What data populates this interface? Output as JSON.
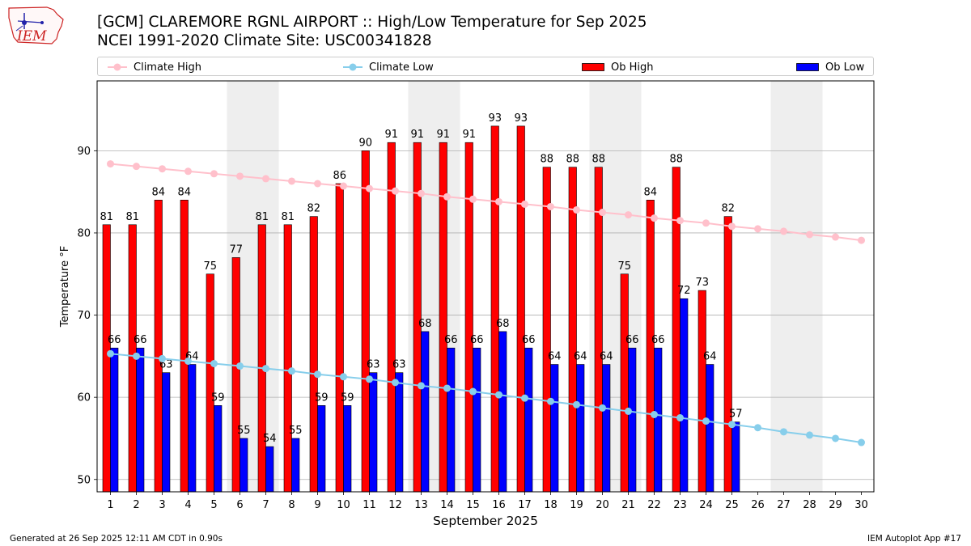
{
  "header": {
    "logo_text": "IEM",
    "title_line1": "[GCM] CLAREMORE RGNL AIRPORT :: High/Low Temperature for Sep 2025",
    "title_line2": "NCEI 1991-2020 Climate Site: USC00341828"
  },
  "legend": {
    "climate_high": "Climate High",
    "climate_low": "Climate Low",
    "ob_high": "Ob High",
    "ob_low": "Ob Low"
  },
  "colors": {
    "ob_high": "#ff0000",
    "ob_low": "#0000ff",
    "climate_high": "#ffc0cb",
    "climate_low": "#87ceeb",
    "weekend_shade": "#eeeeee",
    "grid": "#b0b0b0"
  },
  "chart_data": {
    "type": "bar",
    "xlabel": "September 2025",
    "ylabel": "Temperature °F",
    "ylim": [
      48.5,
      98.5
    ],
    "yticks": [
      50,
      60,
      70,
      80,
      90
    ],
    "grid": "horizontal",
    "legend_position": "top",
    "categories": [
      "1",
      "2",
      "3",
      "4",
      "5",
      "6",
      "7",
      "8",
      "9",
      "10",
      "11",
      "12",
      "13",
      "14",
      "15",
      "16",
      "17",
      "18",
      "19",
      "20",
      "21",
      "22",
      "23",
      "24",
      "25",
      "26",
      "27",
      "28",
      "29",
      "30"
    ],
    "shaded_days": [
      [
        6,
        7
      ],
      [
        13,
        14
      ],
      [
        20,
        21
      ],
      [
        27,
        28
      ]
    ],
    "series": [
      {
        "name": "Ob High",
        "kind": "bar",
        "values": [
          81,
          81,
          84,
          84,
          75,
          77,
          81,
          81,
          82,
          86,
          90,
          91,
          91,
          91,
          91,
          93,
          93,
          88,
          88,
          88,
          75,
          84,
          88,
          73,
          82,
          null,
          null,
          null,
          null,
          null
        ]
      },
      {
        "name": "Ob Low",
        "kind": "bar",
        "values": [
          66,
          66,
          63,
          64,
          59,
          55,
          54,
          55,
          59,
          59,
          63,
          63,
          68,
          66,
          66,
          68,
          66,
          64,
          64,
          64,
          66,
          66,
          72,
          64,
          57,
          null,
          null,
          null,
          null,
          null
        ]
      },
      {
        "name": "Climate High",
        "kind": "line",
        "values": [
          88.4,
          88.1,
          87.8,
          87.5,
          87.2,
          86.9,
          86.6,
          86.3,
          86.0,
          85.7,
          85.4,
          85.1,
          84.8,
          84.4,
          84.1,
          83.8,
          83.5,
          83.2,
          82.8,
          82.5,
          82.2,
          81.8,
          81.5,
          81.2,
          80.8,
          80.5,
          80.2,
          79.8,
          79.5,
          79.1
        ]
      },
      {
        "name": "Climate Low",
        "kind": "line",
        "values": [
          65.3,
          65.0,
          64.7,
          64.4,
          64.1,
          63.8,
          63.5,
          63.2,
          62.8,
          62.5,
          62.2,
          61.8,
          61.4,
          61.1,
          60.7,
          60.3,
          59.9,
          59.5,
          59.1,
          58.7,
          58.3,
          57.9,
          57.5,
          57.1,
          56.7,
          56.3,
          55.8,
          55.4,
          55.0,
          54.5
        ]
      }
    ]
  },
  "footer": {
    "generated": "Generated at 26 Sep 2025 12:11 AM CDT in 0.90s",
    "app": "IEM Autoplot App #17"
  }
}
